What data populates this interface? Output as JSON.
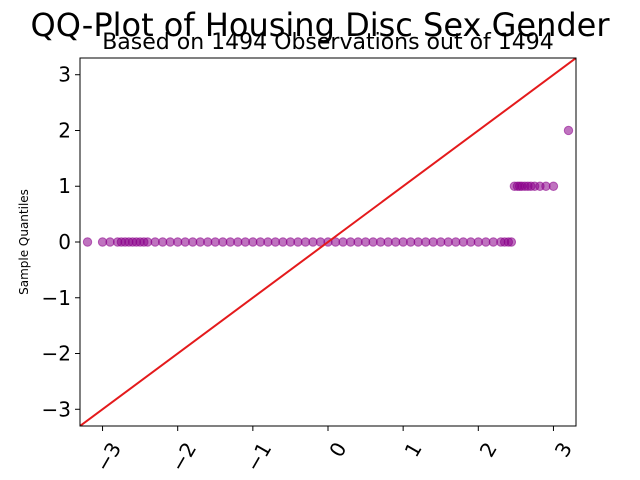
{
  "chart_data": {
    "type": "scatter",
    "title": "QQ-Plot of Housing Disc Sex Gender",
    "subtitle": "Based on 1494 Observations out of 1494",
    "xlabel": "",
    "ylabel": "Sample Quantiles",
    "xlim": [
      -3.3,
      3.3
    ],
    "ylim": [
      -3.3,
      3.3
    ],
    "xticks": [
      -3,
      -2,
      -1,
      0,
      1,
      2,
      3
    ],
    "xtick_labels": [
      "−3",
      "−2",
      "−1",
      "0",
      "1",
      "2",
      "3"
    ],
    "yticks": [
      -3,
      -2,
      -1,
      0,
      1,
      2,
      3
    ],
    "ytick_labels": [
      "−3",
      "−2",
      "−1",
      "0",
      "1",
      "2",
      "3"
    ],
    "grid": false,
    "reference_line": {
      "slope": 1,
      "intercept": 0,
      "color": "#e41a1c"
    },
    "marker_color": "#8b008b",
    "series": [
      {
        "points": [
          [
            -3.2,
            0
          ],
          [
            -3.0,
            0
          ],
          [
            -2.9,
            0
          ],
          [
            -2.8,
            0
          ],
          [
            -2.75,
            0
          ],
          [
            -2.7,
            0
          ],
          [
            -2.65,
            0
          ],
          [
            -2.6,
            0
          ],
          [
            -2.55,
            0
          ],
          [
            -2.5,
            0
          ],
          [
            -2.45,
            0
          ],
          [
            -2.4,
            0
          ],
          [
            -2.3,
            0
          ],
          [
            -2.2,
            0
          ],
          [
            -2.1,
            0
          ],
          [
            -2.0,
            0
          ],
          [
            -1.9,
            0
          ],
          [
            -1.8,
            0
          ],
          [
            -1.7,
            0
          ],
          [
            -1.6,
            0
          ],
          [
            -1.5,
            0
          ],
          [
            -1.4,
            0
          ],
          [
            -1.3,
            0
          ],
          [
            -1.2,
            0
          ],
          [
            -1.1,
            0
          ],
          [
            -1.0,
            0
          ],
          [
            -0.9,
            0
          ],
          [
            -0.8,
            0
          ],
          [
            -0.7,
            0
          ],
          [
            -0.6,
            0
          ],
          [
            -0.5,
            0
          ],
          [
            -0.4,
            0
          ],
          [
            -0.3,
            0
          ],
          [
            -0.2,
            0
          ],
          [
            -0.1,
            0
          ],
          [
            0.0,
            0
          ],
          [
            0.1,
            0
          ],
          [
            0.2,
            0
          ],
          [
            0.3,
            0
          ],
          [
            0.4,
            0
          ],
          [
            0.5,
            0
          ],
          [
            0.6,
            0
          ],
          [
            0.7,
            0
          ],
          [
            0.8,
            0
          ],
          [
            0.9,
            0
          ],
          [
            1.0,
            0
          ],
          [
            1.1,
            0
          ],
          [
            1.2,
            0
          ],
          [
            1.3,
            0
          ],
          [
            1.4,
            0
          ],
          [
            1.5,
            0
          ],
          [
            1.6,
            0
          ],
          [
            1.7,
            0
          ],
          [
            1.8,
            0
          ],
          [
            1.9,
            0
          ],
          [
            2.0,
            0
          ],
          [
            2.1,
            0
          ],
          [
            2.2,
            0
          ],
          [
            2.3,
            0
          ],
          [
            2.35,
            0
          ],
          [
            2.4,
            0
          ],
          [
            2.44,
            0
          ],
          [
            2.48,
            1
          ],
          [
            2.52,
            1
          ],
          [
            2.55,
            1
          ],
          [
            2.58,
            1
          ],
          [
            2.62,
            1
          ],
          [
            2.66,
            1
          ],
          [
            2.7,
            1
          ],
          [
            2.75,
            1
          ],
          [
            2.82,
            1
          ],
          [
            2.9,
            1
          ],
          [
            3.0,
            1
          ],
          [
            3.2,
            2
          ]
        ]
      }
    ]
  }
}
